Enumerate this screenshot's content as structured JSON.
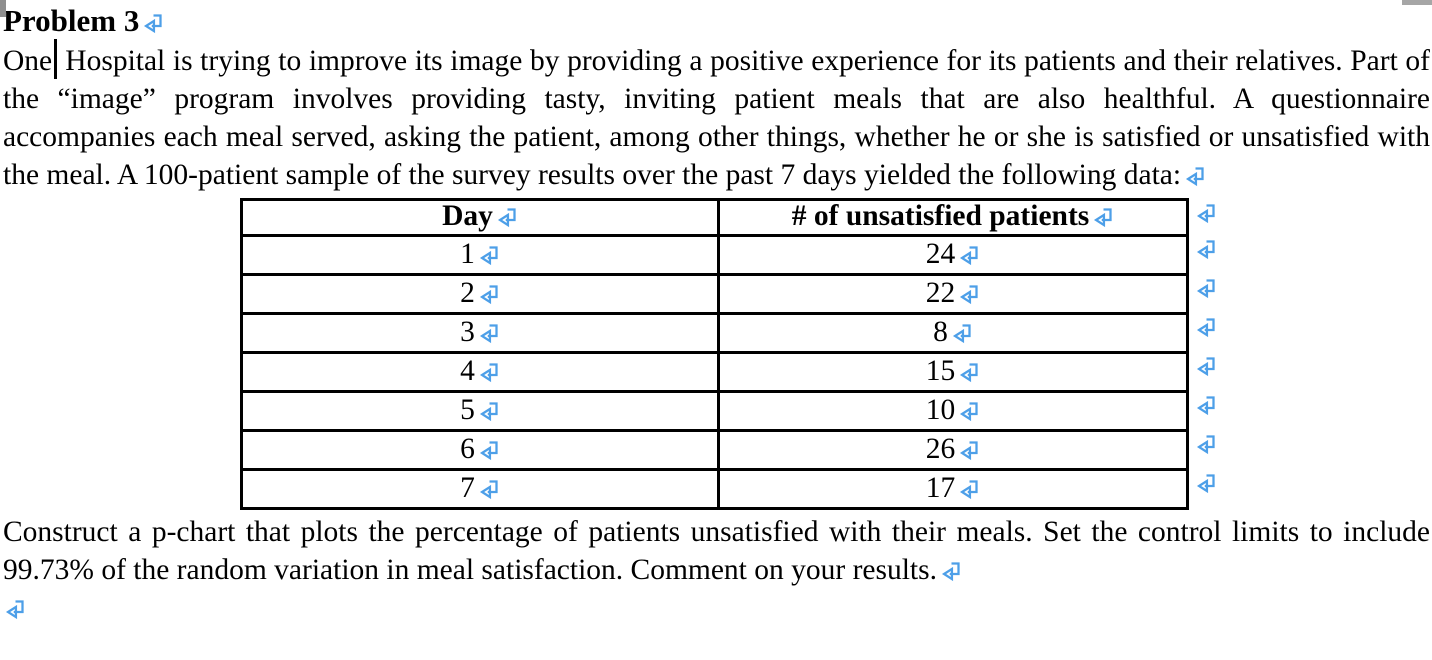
{
  "document": {
    "title": "Problem 3",
    "intro": {
      "text_before_cursor": "One",
      "text_after_cursor": " Hospital is trying to improve its image by providing a positive experience for its patients and their relatives. Part of the “image” program involves providing tasty, inviting patient meals that are also healthful. A questionnaire accompanies each meal served, asking the patient, among other things, whether he or she is satisfied or unsatisfied with the meal. A 100-patient sample of the survey results over the past 7 days yielded the following data:"
    },
    "table": {
      "headers": [
        "Day",
        "# of unsatisfied patients"
      ],
      "rows": [
        [
          "1",
          "24"
        ],
        [
          "2",
          "22"
        ],
        [
          "3",
          "8"
        ],
        [
          "4",
          "15"
        ],
        [
          "5",
          "10"
        ],
        [
          "6",
          "26"
        ],
        [
          "7",
          "17"
        ]
      ]
    },
    "question": "Construct a p-chart that plots the percentage of patients unsatisfied with their meals. Set the control limits to include 99.73% of the random variation in meal satisfaction. Comment on your results."
  },
  "icons": {
    "return_mark": "↵"
  },
  "colors": {
    "formatting_mark_blue": "#4D9FE8",
    "text": "#000000",
    "table_border": "#000000"
  }
}
